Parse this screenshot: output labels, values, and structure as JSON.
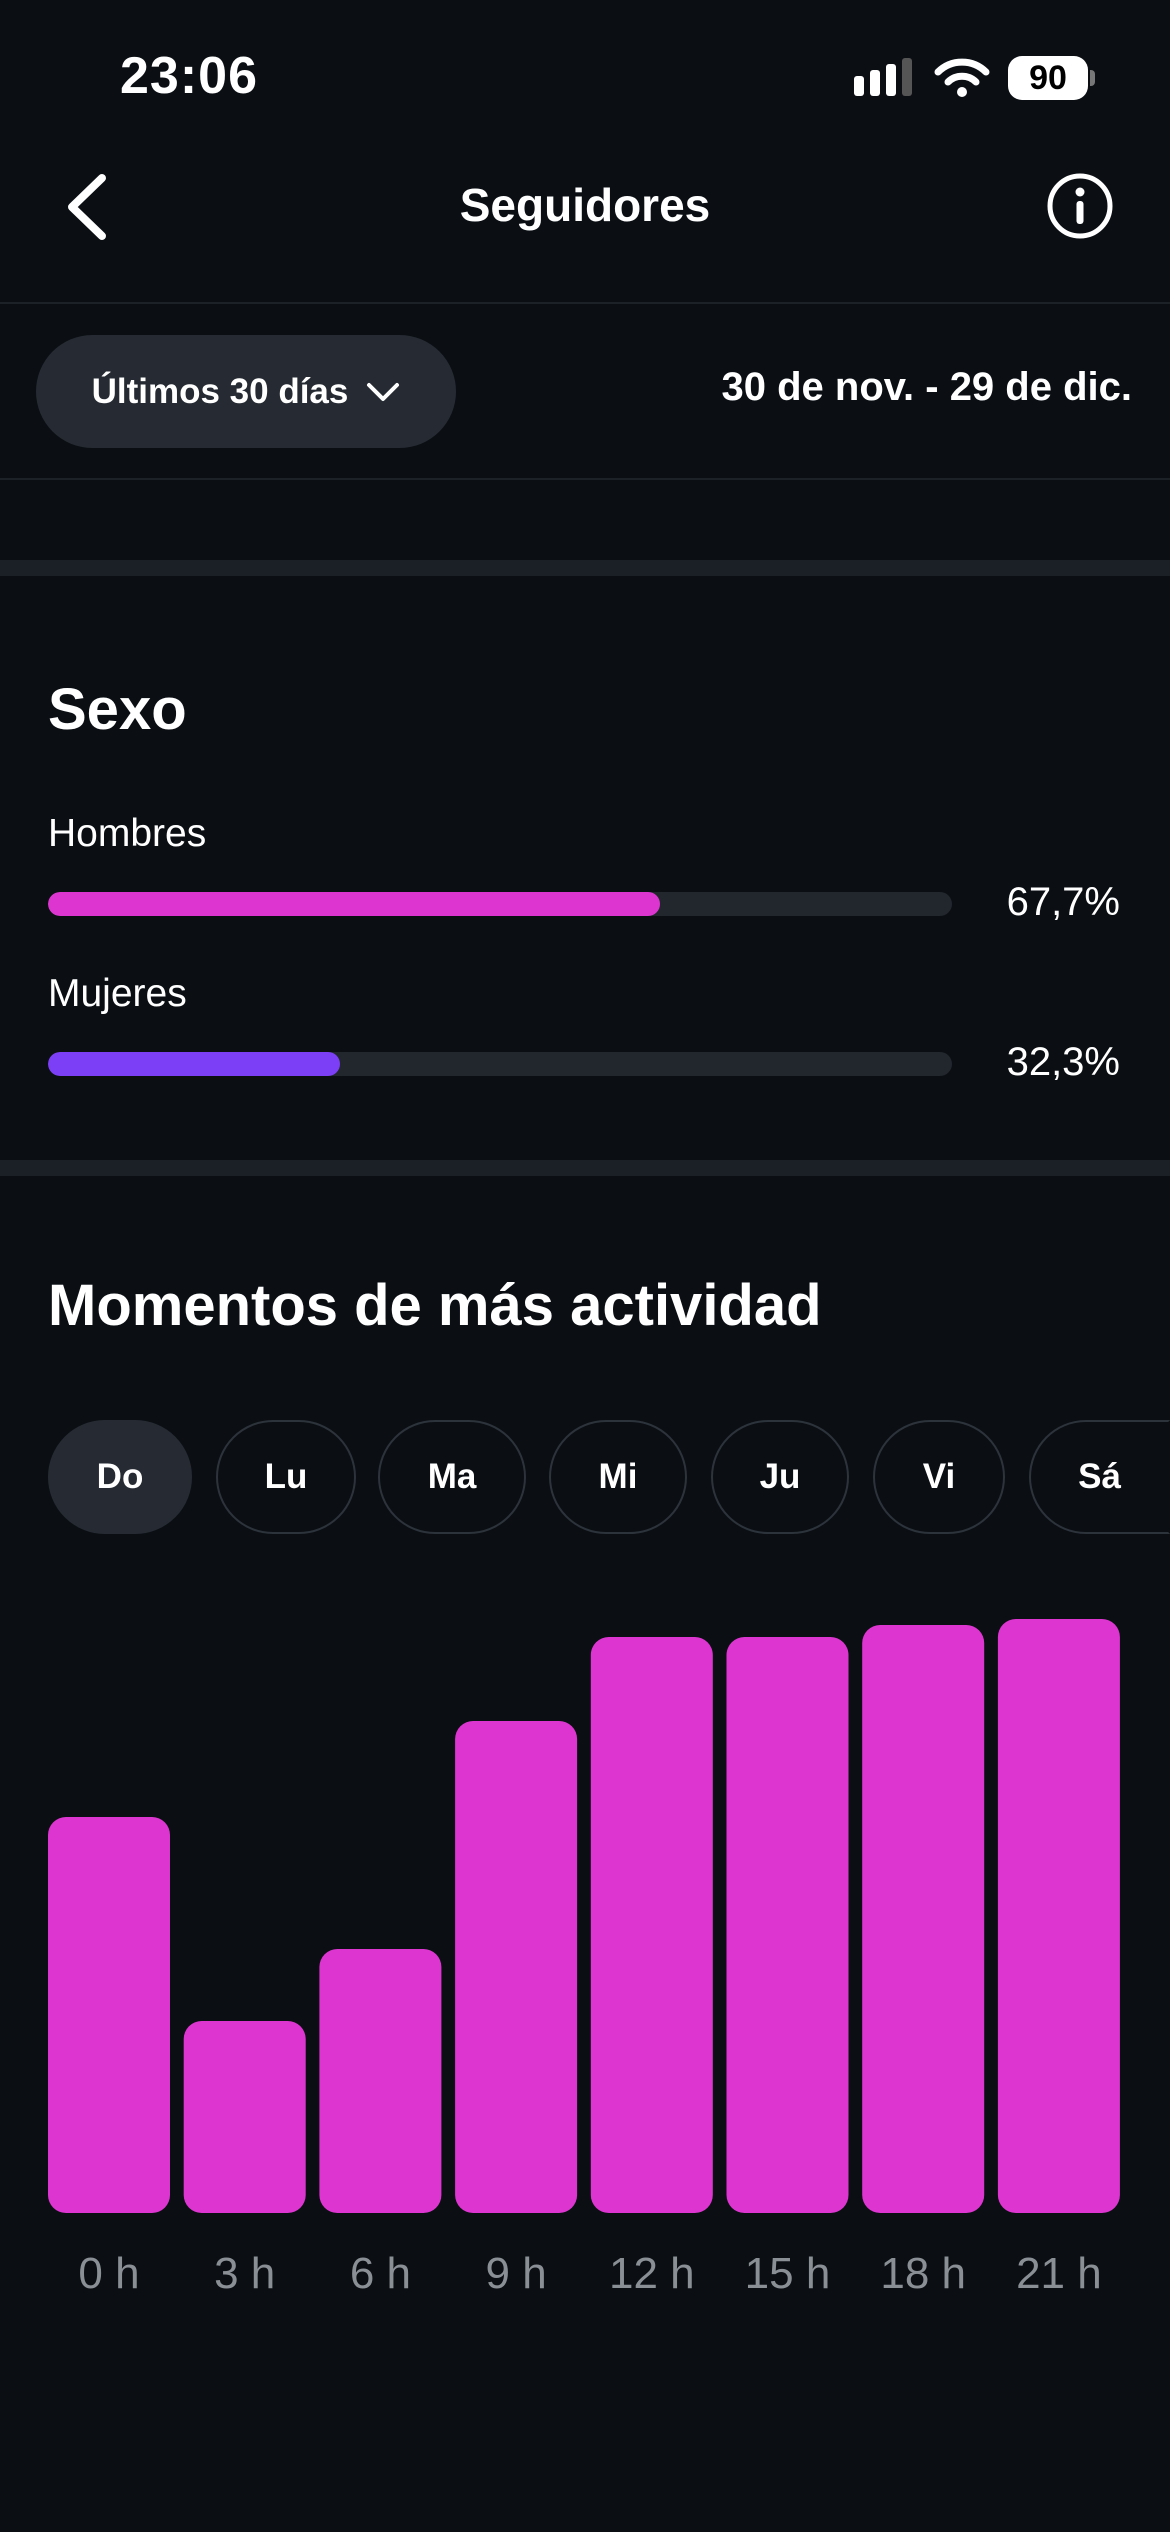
{
  "status_bar": {
    "time": "23:06",
    "battery": "90"
  },
  "header": {
    "title": "Seguidores"
  },
  "filter": {
    "label": "Últimos 30 días",
    "range": "30 de nov. - 29 de dic."
  },
  "sexo": {
    "title": "Sexo",
    "items": [
      {
        "label": "Hombres",
        "value": "67,7%",
        "fraction": 0.677,
        "color": "#dd36d0"
      },
      {
        "label": "Mujeres",
        "value": "32,3%",
        "fraction": 0.323,
        "color": "#7d3ff5"
      }
    ]
  },
  "activity": {
    "title": "Momentos de más actividad",
    "days": [
      "Do",
      "Lu",
      "Ma",
      "Mi",
      "Ju",
      "Vi",
      "Sá"
    ],
    "selected_day": "Do"
  },
  "chart_data": {
    "type": "bar",
    "categories": [
      "0 h",
      "3 h",
      "6 h",
      "9 h",
      "12 h",
      "15 h",
      "18 h",
      "21 h"
    ],
    "values": [
      66,
      32,
      44,
      82,
      96,
      96,
      98,
      99
    ],
    "ylim": [
      0,
      100
    ],
    "color": "#dd36d0",
    "grid": false
  }
}
